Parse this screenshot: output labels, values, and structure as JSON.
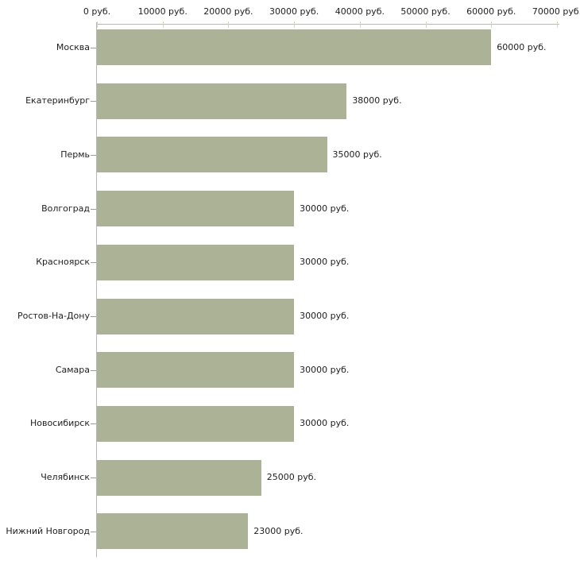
{
  "chart_data": {
    "type": "bar",
    "orientation": "horizontal",
    "title": "",
    "unit_suffix": " руб.",
    "categories": [
      "Москва",
      "Екатеринбург",
      "Пермь",
      "Волгоград",
      "Красноярск",
      "Ростов-На-Дону",
      "Самара",
      "Новосибирск",
      "Челябинск",
      "Нижний Новгород"
    ],
    "values": [
      60000,
      38000,
      35000,
      30000,
      30000,
      30000,
      30000,
      30000,
      25000,
      23000
    ],
    "value_labels": [
      "60000 руб.",
      "38000 руб.",
      "35000 руб.",
      "30000 руб.",
      "30000 руб.",
      "30000 руб.",
      "30000 руб.",
      "30000 руб.",
      "25000 руб.",
      "23000 руб."
    ],
    "x_ticks": [
      0,
      10000,
      20000,
      30000,
      40000,
      50000,
      60000,
      70000
    ],
    "x_tick_labels": [
      "0 руб.",
      "10000 руб.",
      "20000 руб.",
      "30000 руб.",
      "40000 руб.",
      "50000 руб.",
      "60000 руб.",
      "70000 руб."
    ],
    "xlim": [
      0,
      70000
    ],
    "grid": "off",
    "legend": "none",
    "colors": {
      "bar": "#abb296",
      "axis_line": "#b9b9b9",
      "x_tick_mark": "#d6d8b0",
      "y_tick_mark": "#9c9c9c",
      "text": "#1f1f1f",
      "background": "#ffffff"
    }
  }
}
